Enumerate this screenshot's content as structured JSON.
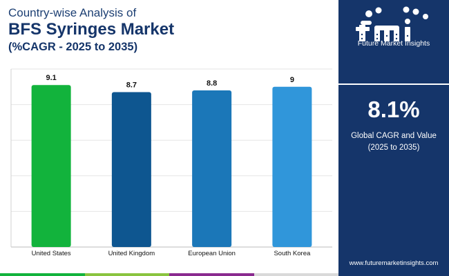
{
  "header": {
    "subtitle": "Country-wise Analysis of",
    "title": "BFS Syringes Market",
    "cagr_label": "(%CAGR - 2025 to 2035)"
  },
  "chart_data": {
    "type": "bar",
    "categories": [
      "United States",
      "United Kingdom",
      "European Union",
      "South Korea"
    ],
    "values": [
      9.1,
      8.7,
      8.8,
      9
    ],
    "value_labels": [
      "9.1",
      "8.7",
      "8.8",
      "9"
    ],
    "title": "BFS Syringes Market",
    "xlabel": "",
    "ylabel": "",
    "ylim": [
      0,
      10
    ],
    "grid": true,
    "bar_colors": [
      "#12b33c",
      "#0e5690",
      "#1b77b8",
      "#3096da"
    ]
  },
  "side_panel": {
    "brand_name": "Future Market Insights",
    "global_value": "8.1%",
    "global_desc_line1": "Global CAGR and Value",
    "global_desc_line2": "(2025 to 2035)",
    "website": "www.futuremarketinsights.com",
    "background_color": "#15356a"
  },
  "bottom_bar_colors": [
    "#12b33c",
    "#8ac43f",
    "#8a2a8f",
    "#d9d9d9"
  ],
  "icons": [
    "fmi-logo-icon"
  ]
}
